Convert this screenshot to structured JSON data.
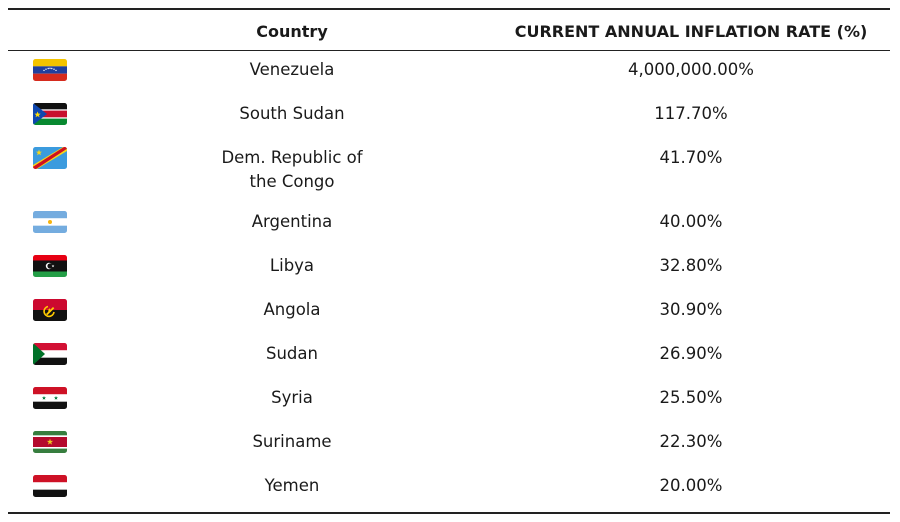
{
  "chart_data": {
    "type": "table",
    "columns": [
      "Country",
      "CURRENT ANNUAL INFLATION RATE (%)"
    ],
    "rows": [
      {
        "flag": "venezuela-flag-icon",
        "country": "Venezuela",
        "rate": "4,000,000.00%",
        "value": 4000000.0
      },
      {
        "flag": "south-sudan-flag-icon",
        "country": "South Sudan",
        "rate": "117.70%",
        "value": 117.7
      },
      {
        "flag": "dr-congo-flag-icon",
        "country": "Dem. Republic of the Congo",
        "rate": "41.70%",
        "value": 41.7
      },
      {
        "flag": "argentina-flag-icon",
        "country": "Argentina",
        "rate": "40.00%",
        "value": 40.0
      },
      {
        "flag": "libya-flag-icon",
        "country": "Libya",
        "rate": "32.80%",
        "value": 32.8
      },
      {
        "flag": "angola-flag-icon",
        "country": "Angola",
        "rate": "30.90%",
        "value": 30.9
      },
      {
        "flag": "sudan-flag-icon",
        "country": "Sudan",
        "rate": "26.90%",
        "value": 26.9
      },
      {
        "flag": "syria-flag-icon",
        "country": "Syria",
        "rate": "25.50%",
        "value": 25.5
      },
      {
        "flag": "suriname-flag-icon",
        "country": "Suriname",
        "rate": "22.30%",
        "value": 22.3
      },
      {
        "flag": "yemen-flag-icon",
        "country": "Yemen",
        "rate": "20.00%",
        "value": 20.0
      }
    ]
  }
}
